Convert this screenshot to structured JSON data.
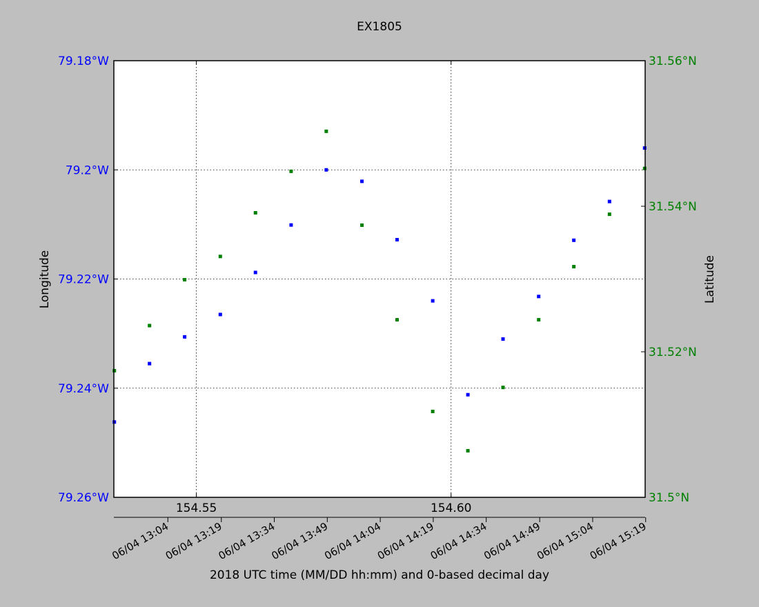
{
  "chart_data": {
    "type": "scatter",
    "title": "EX1805",
    "xlabel": "2018 UTC time (MM/DD hh:mm) and 0-based decimal day",
    "ylabel_left": "Longitude",
    "ylabel_right": "Latitude",
    "xlim": [
      154.5338,
      154.6381
    ],
    "ylim_left": [
      -79.26,
      -79.18
    ],
    "ylim_right": [
      31.5,
      31.56
    ],
    "decimal_day_ticks": [
      {
        "value": 154.55,
        "label": "154.55"
      },
      {
        "value": 154.6,
        "label": "154.60"
      }
    ],
    "time_ticks": [
      {
        "value": 154.5444,
        "label": "06/04 13:04"
      },
      {
        "value": 154.5549,
        "label": "06/04 13:19"
      },
      {
        "value": 154.5653,
        "label": "06/04 13:34"
      },
      {
        "value": 154.5757,
        "label": "06/04 13:49"
      },
      {
        "value": 154.5861,
        "label": "06/04 14:04"
      },
      {
        "value": 154.5965,
        "label": "06/04 14:19"
      },
      {
        "value": 154.6069,
        "label": "06/04 14:34"
      },
      {
        "value": 154.6174,
        "label": "06/04 14:49"
      },
      {
        "value": 154.6278,
        "label": "06/04 15:04"
      },
      {
        "value": 154.6382,
        "label": "06/04 15:19"
      }
    ],
    "left_ticks": [
      {
        "value": -79.18,
        "label": "79.18°W"
      },
      {
        "value": -79.2,
        "label": "79.2°W"
      },
      {
        "value": -79.22,
        "label": "79.22°W"
      },
      {
        "value": -79.24,
        "label": "79.24°W"
      },
      {
        "value": -79.26,
        "label": "79.26°W"
      }
    ],
    "right_ticks": [
      {
        "value": 31.5,
        "label": "31.5°N"
      },
      {
        "value": 31.52,
        "label": "31.52°N"
      },
      {
        "value": 31.54,
        "label": "31.54°N"
      },
      {
        "value": 31.56,
        "label": "31.56°N"
      }
    ],
    "grid": true,
    "colors": {
      "longitude": "#0000ff",
      "latitude": "#008000",
      "background": "#bfbfbf"
    },
    "series": [
      {
        "axis": "left",
        "x": [
          154.5339,
          154.5408,
          154.5477,
          154.5547,
          154.5616,
          154.5686,
          154.5755,
          154.5825,
          154.5894,
          154.5964,
          154.6033,
          154.6102,
          154.6172,
          154.6241,
          154.6311,
          154.638
        ],
        "values": [
          -79.2462,
          -79.2355,
          -79.2306,
          -79.2265,
          -79.2188,
          -79.2101,
          -79.2,
          -79.2021,
          -79.2128,
          -79.224,
          -79.2412,
          -79.231,
          -79.2232,
          -79.2129,
          -79.2058,
          -79.196
        ]
      },
      {
        "axis": "right",
        "x": [
          154.5339,
          154.5408,
          154.5477,
          154.5547,
          154.5616,
          154.5686,
          154.5755,
          154.5825,
          154.5894,
          154.5964,
          154.6033,
          154.6102,
          154.6172,
          154.6241,
          154.6311,
          154.638
        ],
        "values": [
          31.5174,
          31.5236,
          31.5299,
          31.5331,
          31.5391,
          31.5448,
          31.5503,
          31.5374,
          31.5244,
          31.5118,
          31.5064,
          31.5151,
          31.5244,
          31.5317,
          31.5389,
          31.5452
        ]
      }
    ]
  }
}
